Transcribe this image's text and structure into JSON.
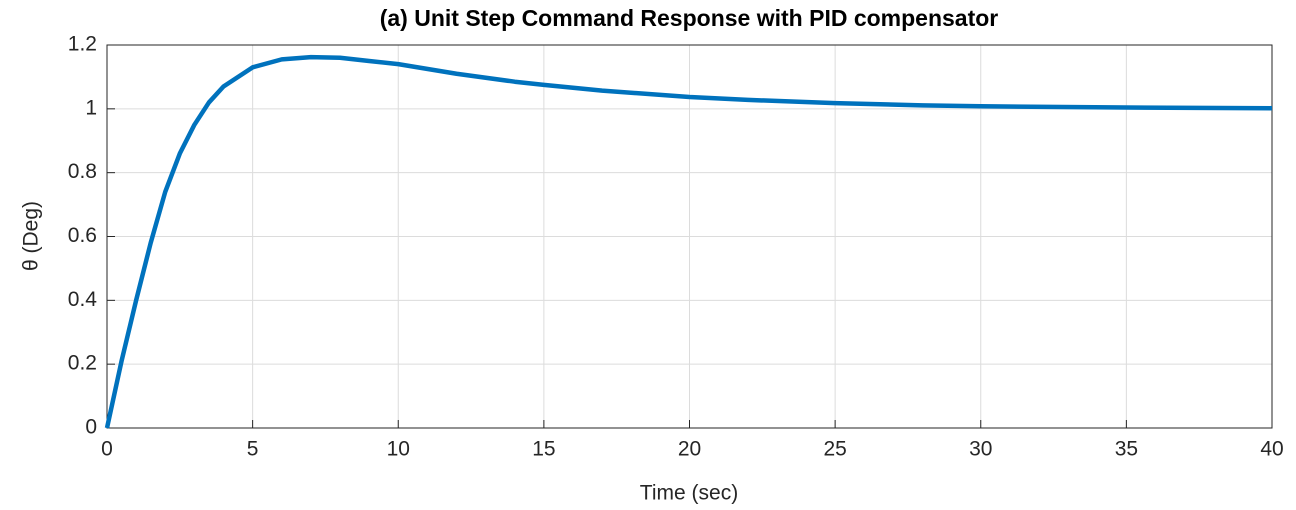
{
  "chart_data": {
    "type": "line",
    "title": "(a) Unit Step Command Response with PID compensator",
    "xlabel": "Time (sec)",
    "ylabel": "θ  (Deg)",
    "x": [
      0,
      0.5,
      1,
      1.5,
      2,
      2.5,
      3,
      3.5,
      4,
      5,
      6,
      7,
      8,
      9,
      10,
      12,
      14,
      15,
      17,
      20,
      22,
      25,
      28,
      30,
      35,
      40
    ],
    "series": [
      {
        "name": "θ",
        "color": "#0072bd",
        "values": [
          0,
          0.21,
          0.4,
          0.58,
          0.74,
          0.86,
          0.95,
          1.02,
          1.07,
          1.13,
          1.155,
          1.162,
          1.16,
          1.15,
          1.14,
          1.11,
          1.085,
          1.075,
          1.057,
          1.037,
          1.028,
          1.018,
          1.011,
          1.008,
          1.004,
          1.002
        ]
      }
    ],
    "xlim": [
      0,
      40
    ],
    "xticks": [
      0,
      5,
      10,
      15,
      20,
      25,
      30,
      35,
      40
    ],
    "ylim": [
      0,
      1.2
    ],
    "yticks": [
      0,
      0.2,
      0.4,
      0.6,
      0.8,
      1,
      1.2
    ],
    "grid": true
  }
}
